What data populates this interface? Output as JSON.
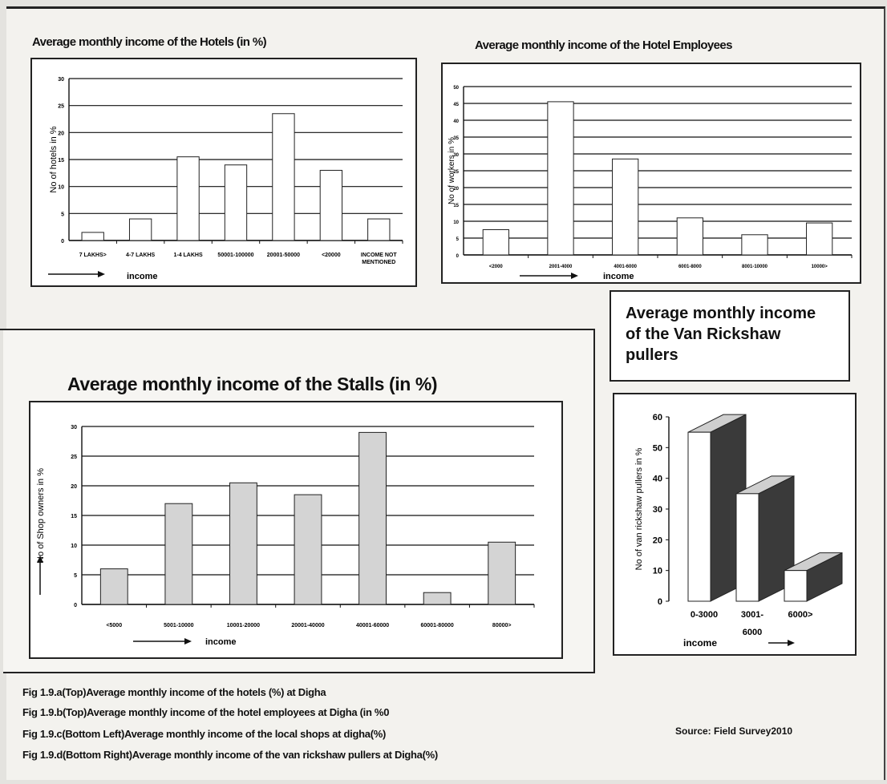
{
  "chart_data": [
    {
      "id": "hotels",
      "type": "bar",
      "title": "Average monthly income of the Hotels (in %)",
      "xlabel": "income",
      "ylabel": "No of hotels in %",
      "categories": [
        "7 LAKHS>",
        "4-7 LAKHS",
        "1-4 LAKHS",
        "50001-100000",
        "20001-50000",
        "<20000",
        "INCOME NOT MENTIONED"
      ],
      "values": [
        1.5,
        4,
        15.5,
        14,
        23.5,
        13,
        4
      ],
      "ylim": [
        0,
        30
      ],
      "yticks": [
        "0",
        "5",
        "10",
        "15",
        "20",
        "25",
        "30"
      ],
      "grid": true
    },
    {
      "id": "employees",
      "type": "bar",
      "title": "Average monthly income of the Hotel Employees",
      "xlabel": "income",
      "ylabel": "No of workers in %",
      "categories": [
        "<2000",
        "2001-4000",
        "4001-6000",
        "6001-8000",
        "8001-10000",
        "10000>"
      ],
      "values": [
        7.5,
        45.5,
        28.5,
        11,
        6,
        9.5
      ],
      "ylim": [
        0,
        50
      ],
      "yticks": [
        "0",
        "5",
        "10",
        "15",
        "20",
        "25",
        "30",
        "35",
        "40",
        "45",
        "50"
      ],
      "grid": true
    },
    {
      "id": "stalls",
      "type": "bar",
      "title": "Average monthly income of the Stalls (in %)",
      "xlabel": "income",
      "ylabel": "No of Shop owners in %",
      "categories": [
        "<5000",
        "5001-10000",
        "10001-20000",
        "20001-40000",
        "40001-60000",
        "60001-80000",
        "80000>"
      ],
      "values": [
        6,
        17,
        20.5,
        18.5,
        29,
        2,
        10.5
      ],
      "ylim": [
        0,
        30
      ],
      "yticks": [
        "0",
        "5",
        "10",
        "15",
        "20",
        "25",
        "30"
      ],
      "grid": true
    },
    {
      "id": "van",
      "type": "bar",
      "title": "Average monthly income of the Van Rickshaw pullers",
      "xlabel": "income",
      "ylabel": "No of van rickshaw pullers in %",
      "categories": [
        "0-3000",
        "3001-6000",
        "6000>"
      ],
      "values": [
        55,
        35,
        10
      ],
      "ylim": [
        0,
        60
      ],
      "yticks": [
        "0",
        "10",
        "20",
        "30",
        "40",
        "50",
        "60"
      ],
      "grid": false
    }
  ],
  "captions": [
    "Fig 1.9.a(Top)Average monthly income of the hotels (%) at Digha",
    "Fig 1.9.b(Top)Average monthly income of the hotel employees at Digha (in %0",
    "Fig 1.9.c(Bottom Left)Average monthly income of the local shops at digha(%)",
    "Fig 1.9.d(Bottom Right)Average monthly income of the van rickshaw pullers at Digha(%)"
  ],
  "source": "Source: Field Survey2010"
}
